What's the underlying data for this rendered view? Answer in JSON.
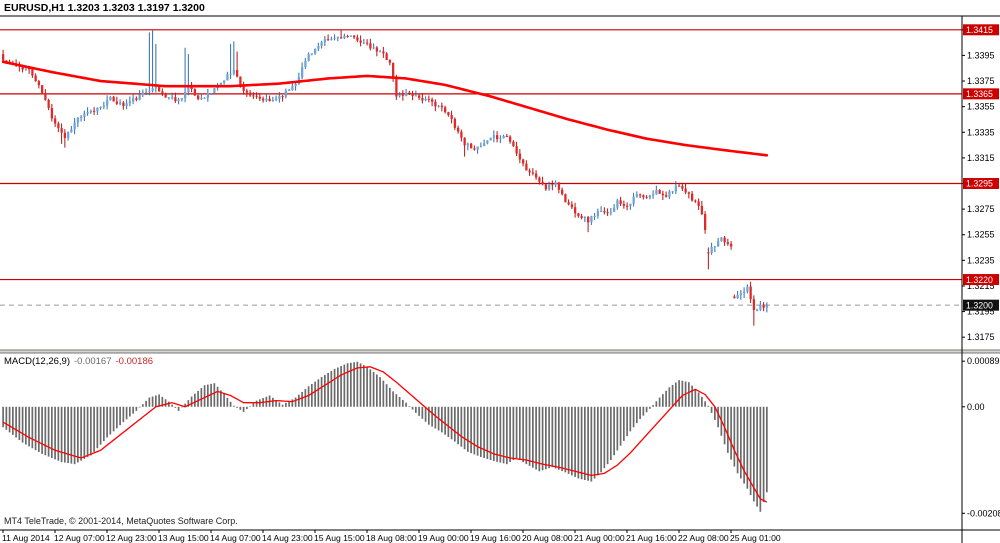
{
  "header": {
    "line": "EURUSD,H1 1.3203 1.3203 1.3197 1.3200"
  },
  "macd_header": {
    "label": "MACD(12,26,9)",
    "macd_value": "-0.00167",
    "signal_value": "-0.00186"
  },
  "footer": {
    "copyright": "MT4 TeleTrade, © 2001-2014, MetaQuotes Software Corp."
  },
  "colors": {
    "up_fill": "#6fa5d8",
    "up_stroke": "#2f6da8",
    "down_fill": "#e02a2a",
    "down_stroke": "#b31414",
    "ma_line": "#ff0000",
    "level_line": "#cc0000",
    "badge_bg": "#cc0000",
    "badge_text": "#ffffff",
    "current_badge_bg": "#111111",
    "current_line": "#9a9a9a",
    "macd_bar": "#6b6b6b",
    "signal_line": "#ff0000",
    "axis_text": "#000000"
  },
  "chart_data": [
    {
      "type": "candlestick",
      "title": "EURUSD,H1",
      "symbol": "EURUSD",
      "timeframe": "H1",
      "ohlc": {
        "open": 1.3203,
        "high": 1.3203,
        "low": 1.3197,
        "close": 1.32
      },
      "num_candles": 236,
      "ylim": [
        1.3165,
        1.3425
      ],
      "y_ticks": [
        1.3415,
        1.3395,
        1.3375,
        1.3355,
        1.3335,
        1.3315,
        1.3295,
        1.3275,
        1.3255,
        1.3235,
        1.3215,
        1.3195,
        1.3175
      ],
      "levels": [
        1.3415,
        1.3365,
        1.3295,
        1.322
      ],
      "current_price": 1.32,
      "x_labels": [
        "11 Aug 2014",
        "12 Aug 07:00",
        "12 Aug 23:00",
        "13 Aug 15:00",
        "14 Aug 07:00",
        "14 Aug 23:00",
        "15 Aug 15:00",
        "18 Aug 08:00",
        "19 Aug 00:00",
        "19 Aug 16:00",
        "20 Aug 08:00",
        "21 Aug 00:00",
        "21 Aug 16:00",
        "22 Aug 08:00",
        "25 Aug 01:00"
      ],
      "candles_per_label": 16,
      "seed": 11,
      "wick_size": 0.0004,
      "close_anchors": [
        [
          0,
          1.3391
        ],
        [
          4,
          1.3387
        ],
        [
          8,
          1.3384
        ],
        [
          12,
          1.3366
        ],
        [
          15,
          1.3347
        ],
        [
          19,
          1.3331
        ],
        [
          23,
          1.3346
        ],
        [
          28,
          1.3352
        ],
        [
          33,
          1.3361
        ],
        [
          37,
          1.3356
        ],
        [
          42,
          1.3363
        ],
        [
          46,
          1.3371
        ],
        [
          50,
          1.3363
        ],
        [
          54,
          1.336
        ],
        [
          57,
          1.337
        ],
        [
          60,
          1.3361
        ],
        [
          64,
          1.3366
        ],
        [
          68,
          1.3376
        ],
        [
          71,
          1.3385
        ],
        [
          73,
          1.3371
        ],
        [
          77,
          1.3362
        ],
        [
          82,
          1.3359
        ],
        [
          87,
          1.3366
        ],
        [
          90,
          1.3374
        ],
        [
          94,
          1.3396
        ],
        [
          99,
          1.3406
        ],
        [
          104,
          1.341
        ],
        [
          109,
          1.3408
        ],
        [
          113,
          1.3401
        ],
        [
          117,
          1.3396
        ],
        [
          119,
          1.339
        ],
        [
          121,
          1.3363
        ],
        [
          125,
          1.3366
        ],
        [
          129,
          1.3361
        ],
        [
          134,
          1.3356
        ],
        [
          138,
          1.3345
        ],
        [
          142,
          1.3326
        ],
        [
          146,
          1.3322
        ],
        [
          151,
          1.3331
        ],
        [
          155,
          1.3332
        ],
        [
          158,
          1.332
        ],
        [
          161,
          1.3306
        ],
        [
          164,
          1.33
        ],
        [
          167,
          1.3291
        ],
        [
          170,
          1.3296
        ],
        [
          173,
          1.3281
        ],
        [
          177,
          1.3271
        ],
        [
          180,
          1.3266
        ],
        [
          183,
          1.3273
        ],
        [
          186,
          1.3271
        ],
        [
          189,
          1.3281
        ],
        [
          192,
          1.3278
        ],
        [
          195,
          1.3286
        ],
        [
          198,
          1.3283
        ],
        [
          201,
          1.3289
        ],
        [
          204,
          1.3286
        ],
        [
          207,
          1.3293
        ],
        [
          210,
          1.3288
        ],
        [
          213,
          1.3281
        ],
        [
          215,
          1.3272
        ],
        [
          217,
          1.3242
        ],
        [
          219,
          1.3246
        ],
        [
          221,
          1.3251
        ],
        [
          223,
          1.3248
        ],
        [
          224,
          1.3246
        ],
        [
          225,
          1.3207
        ],
        [
          227,
          1.3211
        ],
        [
          229,
          1.3213
        ],
        [
          231,
          1.3196
        ],
        [
          233,
          1.3199
        ],
        [
          235,
          1.32
        ]
      ],
      "ma_anchors": [
        [
          0,
          1.339
        ],
        [
          15,
          1.3382
        ],
        [
          30,
          1.3375
        ],
        [
          50,
          1.3371
        ],
        [
          70,
          1.3371
        ],
        [
          85,
          1.3373
        ],
        [
          100,
          1.3377
        ],
        [
          112,
          1.3379
        ],
        [
          124,
          1.3377
        ],
        [
          136,
          1.3372
        ],
        [
          150,
          1.3363
        ],
        [
          162,
          1.3354
        ],
        [
          174,
          1.3345
        ],
        [
          186,
          1.3337
        ],
        [
          198,
          1.333
        ],
        [
          210,
          1.3325
        ],
        [
          222,
          1.3321
        ],
        [
          235,
          1.3317
        ]
      ],
      "wick_spikes": [
        {
          "i": 18,
          "l": 1.3326
        },
        {
          "i": 19,
          "l": 1.3323
        },
        {
          "i": 45,
          "h": 1.3413
        },
        {
          "i": 46,
          "h": 1.3415
        },
        {
          "i": 47,
          "h": 1.3404
        },
        {
          "i": 56,
          "h": 1.3401
        },
        {
          "i": 57,
          "h": 1.3396
        },
        {
          "i": 70,
          "h": 1.3404
        },
        {
          "i": 71,
          "h": 1.3406
        },
        {
          "i": 72,
          "h": 1.3398
        },
        {
          "i": 104,
          "h": 1.3415
        },
        {
          "i": 105,
          "h": 1.3412
        },
        {
          "i": 142,
          "l": 1.3316
        },
        {
          "i": 180,
          "l": 1.3257
        },
        {
          "i": 217,
          "l": 1.3228
        },
        {
          "i": 231,
          "l": 1.3184
        }
      ]
    },
    {
      "type": "macd",
      "params": "12,26,9",
      "ylim": [
        -0.00225,
        0.00105
      ],
      "y_ticks": [
        {
          "v": 0.00089,
          "label": "0.00089"
        },
        {
          "v": 0,
          "label": "0.00"
        },
        {
          "v": -0.00208,
          "label": "-0.00208"
        }
      ],
      "macd_anchors": [
        [
          0,
          -0.0004
        ],
        [
          6,
          -0.0007
        ],
        [
          12,
          -0.00092
        ],
        [
          18,
          -0.00108
        ],
        [
          22,
          -0.00112
        ],
        [
          27,
          -0.00095
        ],
        [
          32,
          -0.0006
        ],
        [
          37,
          -0.0003
        ],
        [
          41,
          -8e-05
        ],
        [
          45,
          0.00018
        ],
        [
          48,
          0.00024
        ],
        [
          51,
          0.0001
        ],
        [
          54,
          -8e-05
        ],
        [
          58,
          0.0002
        ],
        [
          62,
          0.00042
        ],
        [
          65,
          0.00046
        ],
        [
          68,
          0.00025
        ],
        [
          71,
          2e-05
        ],
        [
          74,
          -0.0001
        ],
        [
          78,
          0.00012
        ],
        [
          82,
          0.00022
        ],
        [
          86,
          4e-05
        ],
        [
          90,
          0.00018
        ],
        [
          94,
          0.0004
        ],
        [
          98,
          0.00058
        ],
        [
          102,
          0.00074
        ],
        [
          106,
          0.00085
        ],
        [
          109,
          0.00088
        ],
        [
          112,
          0.00078
        ],
        [
          116,
          0.00058
        ],
        [
          120,
          0.0003
        ],
        [
          124,
          8e-05
        ],
        [
          127,
          -0.00012
        ],
        [
          131,
          -0.00035
        ],
        [
          135,
          -0.0005
        ],
        [
          139,
          -0.00068
        ],
        [
          143,
          -0.00088
        ],
        [
          147,
          -0.00098
        ],
        [
          151,
          -0.00106
        ],
        [
          155,
          -0.00112
        ],
        [
          158,
          -0.001
        ],
        [
          161,
          -0.00112
        ],
        [
          165,
          -0.00126
        ],
        [
          169,
          -0.00118
        ],
        [
          173,
          -0.00128
        ],
        [
          177,
          -0.0014
        ],
        [
          181,
          -0.00146
        ],
        [
          184,
          -0.00128
        ],
        [
          187,
          -0.00104
        ],
        [
          190,
          -0.00076
        ],
        [
          193,
          -0.00048
        ],
        [
          196,
          -0.00024
        ],
        [
          199,
          -4e-05
        ],
        [
          202,
          0.00018
        ],
        [
          205,
          0.00038
        ],
        [
          208,
          0.00052
        ],
        [
          211,
          0.00048
        ],
        [
          214,
          0.00028
        ],
        [
          217,
          2e-05
        ],
        [
          220,
          -0.0004
        ],
        [
          223,
          -0.0009
        ],
        [
          226,
          -0.0013
        ],
        [
          229,
          -0.0016
        ],
        [
          231,
          -0.00185
        ],
        [
          233,
          -0.00205
        ],
        [
          235,
          -0.00167
        ]
      ],
      "signal_anchors": [
        [
          0,
          -0.0003
        ],
        [
          8,
          -0.0006
        ],
        [
          16,
          -0.00085
        ],
        [
          24,
          -0.001
        ],
        [
          30,
          -0.00085
        ],
        [
          36,
          -0.00055
        ],
        [
          42,
          -0.00025
        ],
        [
          47,
          0.0
        ],
        [
          52,
          8e-05
        ],
        [
          56,
          0.0
        ],
        [
          61,
          0.00015
        ],
        [
          66,
          0.0003
        ],
        [
          70,
          0.00022
        ],
        [
          74,
          8e-05
        ],
        [
          79,
          8e-05
        ],
        [
          84,
          0.00012
        ],
        [
          89,
          0.0001
        ],
        [
          94,
          0.00022
        ],
        [
          99,
          0.00042
        ],
        [
          104,
          0.00062
        ],
        [
          109,
          0.00076
        ],
        [
          113,
          0.00078
        ],
        [
          117,
          0.00068
        ],
        [
          121,
          0.00048
        ],
        [
          125,
          0.00026
        ],
        [
          129,
          4e-05
        ],
        [
          133,
          -0.00018
        ],
        [
          137,
          -0.00038
        ],
        [
          141,
          -0.00058
        ],
        [
          146,
          -0.00078
        ],
        [
          151,
          -0.00092
        ],
        [
          156,
          -0.001
        ],
        [
          161,
          -0.00104
        ],
        [
          166,
          -0.00112
        ],
        [
          171,
          -0.00118
        ],
        [
          176,
          -0.00126
        ],
        [
          181,
          -0.00134
        ],
        [
          185,
          -0.0013
        ],
        [
          189,
          -0.00114
        ],
        [
          193,
          -0.0009
        ],
        [
          197,
          -0.00062
        ],
        [
          201,
          -0.00034
        ],
        [
          205,
          -6e-05
        ],
        [
          209,
          0.00022
        ],
        [
          213,
          0.00034
        ],
        [
          216,
          0.00024
        ],
        [
          219,
          0.0
        ],
        [
          222,
          -0.0004
        ],
        [
          225,
          -0.00085
        ],
        [
          228,
          -0.00125
        ],
        [
          231,
          -0.00158
        ],
        [
          233,
          -0.0018
        ],
        [
          235,
          -0.00186
        ]
      ]
    }
  ]
}
